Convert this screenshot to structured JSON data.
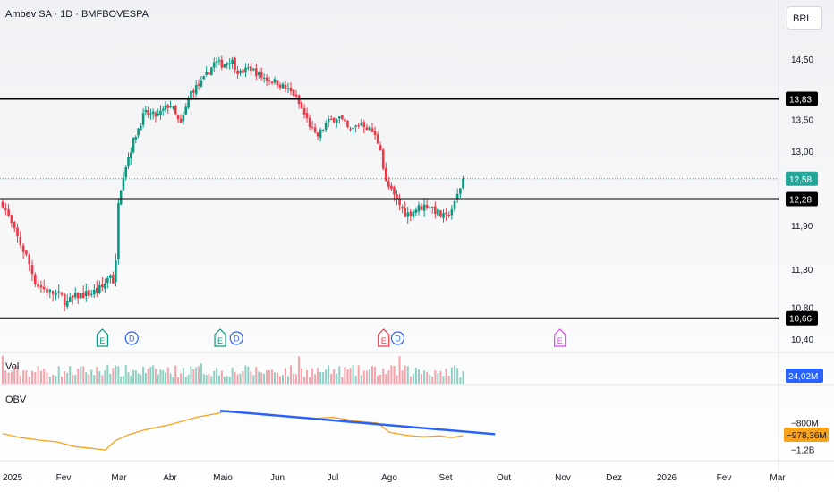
{
  "header": {
    "title": "Ambev SA · 1D · BMFBOVESPA",
    "currency": "BRL"
  },
  "colors": {
    "up": "#089981",
    "down": "#f23645",
    "obv": "#f7a21b",
    "trend": "#2962ff",
    "level": "#000000",
    "price_tag": "#26a69a",
    "vol_tag": "#2962ff"
  },
  "chart_data": {
    "type": "candlestick",
    "title": "Ambev SA · 1D · BMFBOVESPA",
    "x_ticks": [
      "2025",
      "Fev",
      "Mar",
      "Abr",
      "Maio",
      "Jun",
      "Jul",
      "Ago",
      "Set",
      "Out",
      "Nov",
      "Dez",
      "2026",
      "Fev",
      "Mar"
    ],
    "y_ticks": [
      "14,50",
      "13,50",
      "13,00",
      "11,90",
      "11,30",
      "10,80",
      "10,40"
    ],
    "ylim": [
      10.4,
      14.9
    ],
    "horizontal_levels": [
      {
        "value": 13.83,
        "label": "13,83"
      },
      {
        "value": 12.28,
        "label": "12,28"
      },
      {
        "value": 10.66,
        "label": "10,66"
      }
    ],
    "last_price": {
      "value": 12.58,
      "label": "12,58"
    },
    "close_path": [
      {
        "m": 0.0,
        "c": 12.22
      },
      {
        "m": 0.2,
        "c": 11.8
      },
      {
        "m": 0.4,
        "c": 11.45
      },
      {
        "m": 0.55,
        "c": 11.1
      },
      {
        "m": 0.75,
        "c": 11.0
      },
      {
        "m": 0.95,
        "c": 10.95
      },
      {
        "m": 1.05,
        "c": 10.85
      },
      {
        "m": 1.25,
        "c": 10.95
      },
      {
        "m": 1.5,
        "c": 10.98
      },
      {
        "m": 1.7,
        "c": 11.05
      },
      {
        "m": 1.85,
        "c": 11.25
      },
      {
        "m": 1.93,
        "c": 11.05
      },
      {
        "m": 1.97,
        "c": 12.2
      },
      {
        "m": 2.1,
        "c": 12.7
      },
      {
        "m": 2.3,
        "c": 13.2
      },
      {
        "m": 2.5,
        "c": 13.6
      },
      {
        "m": 2.75,
        "c": 13.55
      },
      {
        "m": 3.0,
        "c": 13.75
      },
      {
        "m": 3.2,
        "c": 13.4
      },
      {
        "m": 3.4,
        "c": 13.95
      },
      {
        "m": 3.6,
        "c": 14.1
      },
      {
        "m": 3.85,
        "c": 14.45
      },
      {
        "m": 4.0,
        "c": 14.4
      },
      {
        "m": 4.15,
        "c": 14.5
      },
      {
        "m": 4.3,
        "c": 14.25
      },
      {
        "m": 4.5,
        "c": 14.35
      },
      {
        "m": 4.7,
        "c": 14.2
      },
      {
        "m": 5.0,
        "c": 14.1
      },
      {
        "m": 5.3,
        "c": 13.9
      },
      {
        "m": 5.5,
        "c": 13.55
      },
      {
        "m": 5.7,
        "c": 13.2
      },
      {
        "m": 5.9,
        "c": 13.45
      },
      {
        "m": 6.1,
        "c": 13.55
      },
      {
        "m": 6.3,
        "c": 13.3
      },
      {
        "m": 6.5,
        "c": 13.45
      },
      {
        "m": 6.7,
        "c": 13.3
      },
      {
        "m": 6.85,
        "c": 13.05
      },
      {
        "m": 6.92,
        "c": 12.55
      },
      {
        "m": 7.1,
        "c": 12.3
      },
      {
        "m": 7.3,
        "c": 12.05
      },
      {
        "m": 7.5,
        "c": 12.15
      },
      {
        "m": 7.7,
        "c": 12.2
      },
      {
        "m": 7.9,
        "c": 12.05
      },
      {
        "m": 8.0,
        "c": 12.0
      },
      {
        "m": 8.15,
        "c": 12.2
      },
      {
        "m": 8.3,
        "c": 12.58
      }
    ],
    "event_markers": [
      {
        "m": 1.7,
        "label": "E"
      },
      {
        "m": 2.25,
        "label": "D"
      },
      {
        "m": 3.95,
        "label": "E"
      },
      {
        "m": 4.25,
        "label": "D"
      },
      {
        "m": 6.9,
        "label": "E"
      },
      {
        "m": 7.15,
        "label": "D"
      },
      {
        "m": 9.95,
        "label": "E"
      }
    ],
    "volume": {
      "label": "Vol",
      "last": "24,02M"
    },
    "obv": {
      "label": "OBV",
      "y_ticks": [
        "−800M",
        "−1,2B"
      ],
      "last": "−978,36M",
      "ylim": [
        -1.3,
        -0.55
      ],
      "path": [
        {
          "m": 0.0,
          "v": -0.97
        },
        {
          "m": 0.3,
          "v": -1.02
        },
        {
          "m": 0.6,
          "v": -1.07
        },
        {
          "m": 0.9,
          "v": -1.1
        },
        {
          "m": 1.2,
          "v": -1.15
        },
        {
          "m": 1.5,
          "v": -1.18
        },
        {
          "m": 1.75,
          "v": -1.2
        },
        {
          "m": 1.95,
          "v": -1.05
        },
        {
          "m": 2.2,
          "v": -0.97
        },
        {
          "m": 2.5,
          "v": -0.9
        },
        {
          "m": 3.0,
          "v": -0.82
        },
        {
          "m": 3.5,
          "v": -0.72
        },
        {
          "m": 3.9,
          "v": -0.65
        },
        {
          "m": 4.1,
          "v": -0.62
        },
        {
          "m": 4.4,
          "v": -0.66
        },
        {
          "m": 4.8,
          "v": -0.68
        },
        {
          "m": 5.2,
          "v": -0.72
        },
        {
          "m": 5.6,
          "v": -0.75
        },
        {
          "m": 6.0,
          "v": -0.73
        },
        {
          "m": 6.4,
          "v": -0.77
        },
        {
          "m": 6.8,
          "v": -0.8
        },
        {
          "m": 7.0,
          "v": -0.95
        },
        {
          "m": 7.3,
          "v": -1.0
        },
        {
          "m": 7.6,
          "v": -1.02
        },
        {
          "m": 7.9,
          "v": -0.99
        },
        {
          "m": 8.1,
          "v": -1.01
        },
        {
          "m": 8.3,
          "v": -0.98
        }
      ],
      "trendline": [
        {
          "m": 3.95,
          "v": -0.62
        },
        {
          "m": 8.85,
          "v": -0.97
        }
      ]
    }
  }
}
